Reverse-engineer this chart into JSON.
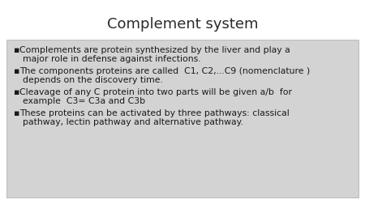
{
  "title": "Complement system",
  "title_fontsize": 13,
  "title_color": "#2a2a2a",
  "background_color": "#ffffff",
  "box_color": "#d3d3d3",
  "bullet_lines": [
    [
      "Complements are protein synthesized by the liver and play a",
      "major role in defense against infections."
    ],
    [
      "The components proteins are called  C1, C2,...C9 (nomenclature )",
      "depends on the discovery time."
    ],
    [
      "Cleavage of any C protein into two parts will be given a/b  for",
      "example  C3= C3a and C3b"
    ],
    [
      "These proteins can be activated by three pathways: classical",
      "pathway, lectin pathway and alternative pathway."
    ]
  ],
  "bullet_fontsize": 7.8,
  "text_color": "#1a1a1a",
  "bullet_symbol": "▪"
}
